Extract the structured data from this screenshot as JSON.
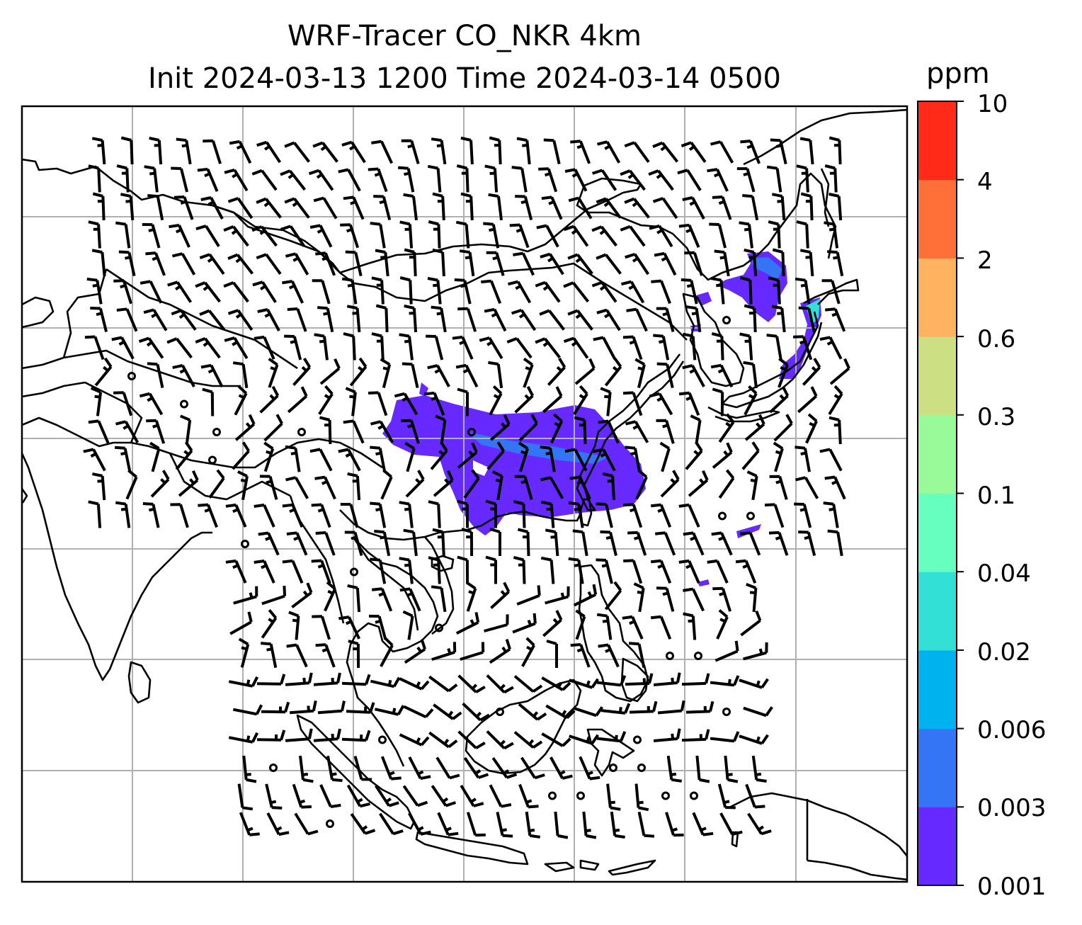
{
  "title": {
    "line1": "WRF-Tracer CO_NKR 4km",
    "line2": "Init 2024-03-13 1200 Time 2024-03-14 0500"
  },
  "colorbar": {
    "unit": "ppm",
    "levels": [
      "0.001",
      "0.003",
      "0.006",
      "0.02",
      "0.04",
      "0.1",
      "0.3",
      "0.6",
      "2",
      "4",
      "10"
    ],
    "colors": [
      "#6629ff",
      "#3375f5",
      "#00b2ed",
      "#33e0d6",
      "#66ffc0",
      "#99fa99",
      "#cce083",
      "#ffb260",
      "#ff7038",
      "#ff2a17"
    ]
  },
  "map": {
    "variable": "CO tracer concentration",
    "overlays": [
      "coastlines",
      "lat-lon gridlines",
      "wind barbs"
    ],
    "calm_marker": "circle",
    "plume_colors": {
      "main": "#6629ff",
      "secondary": "#3375f5",
      "edge": "#33e0d6"
    }
  }
}
